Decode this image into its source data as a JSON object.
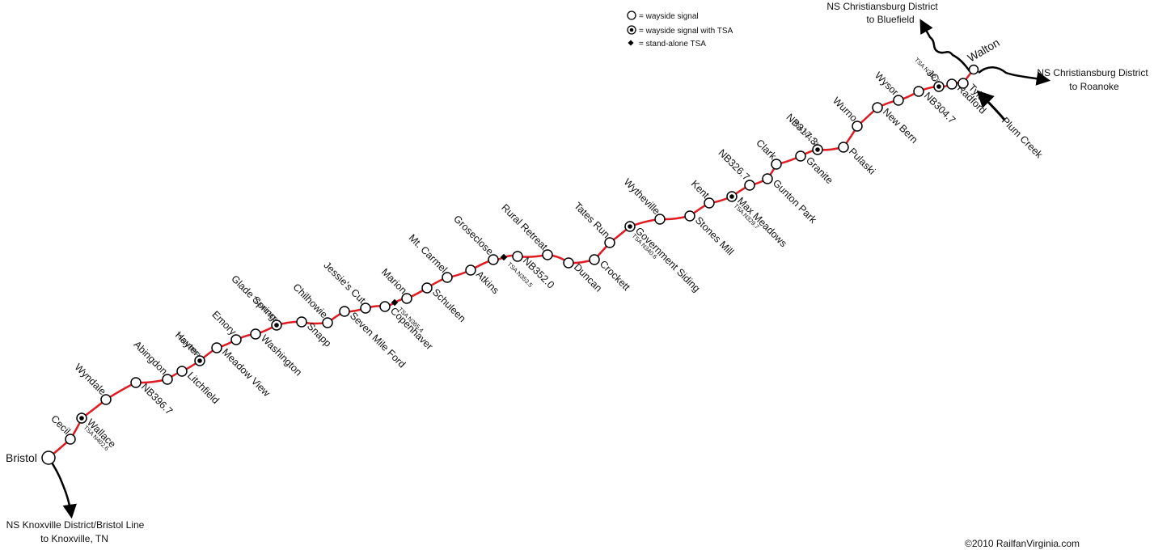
{
  "colors": {
    "main_line": "#e11b22",
    "branch_line": "#000000",
    "signal_fill": "#ffffff",
    "signal_stroke": "#000000"
  },
  "legend": {
    "wayside": "= wayside signal",
    "wayside_tsa": "= wayside signal with TSA",
    "standalone": "= stand-alone TSA"
  },
  "annotations": {
    "bluefield_1": "NS Christiansburg District",
    "bluefield_2": "to Bluefield",
    "roanoke_1": "NS Christiansburg District",
    "roanoke_2": "to Roanoke",
    "knoxville_1": "NS Knoxville District/Bristol Line",
    "knoxville_2": "to Knoxville, TN",
    "plum_creek": "Plum Creek",
    "walton": "Walton"
  },
  "copyright": "©2010 RailfanVirginia.com",
  "stations": [
    {
      "name": "Bristol"
    },
    {
      "name": "Cecil"
    },
    {
      "name": "Wallace",
      "tsa": "TSA N402.6"
    },
    {
      "name": "Wyndale"
    },
    {
      "name": "NB396.7"
    },
    {
      "name": "Abingdon"
    },
    {
      "name": "Litchfield"
    },
    {
      "name": "Hayter",
      "tsa": "TSA N390.4"
    },
    {
      "name": "Meadow View"
    },
    {
      "name": "Emory"
    },
    {
      "name": "Washington"
    },
    {
      "name": "Glade Spring",
      "tsa": "TSA N378.8"
    },
    {
      "name": "Snapp"
    },
    {
      "name": "Chilhowie"
    },
    {
      "name": "Seven Mile Ford"
    },
    {
      "name": "Jessie's Cut"
    },
    {
      "name": "Copenhaver"
    },
    {
      "name": "TSA N365.4"
    },
    {
      "name": "Marion"
    },
    {
      "name": "Schuleen"
    },
    {
      "name": "Mt. Carmel"
    },
    {
      "name": "Atkins"
    },
    {
      "name": "Groseclose"
    },
    {
      "name": "TSA N353.5"
    },
    {
      "name": "NB352.0"
    },
    {
      "name": "Rural Retreat"
    },
    {
      "name": "Duncan"
    },
    {
      "name": "Crockett"
    },
    {
      "name": "Tates Run"
    },
    {
      "name": "Government Siding",
      "tsa": "TSA N340.6"
    },
    {
      "name": "Wytheville"
    },
    {
      "name": "Stones Mill"
    },
    {
      "name": "Kent"
    },
    {
      "name": "Max Meadows",
      "tsa": "TSA N329.7"
    },
    {
      "name": "NB326.7"
    },
    {
      "name": "Gunton Park"
    },
    {
      "name": "Clark"
    },
    {
      "name": "Granite"
    },
    {
      "name": "NB317.3",
      "tsa": "TSA N317.2"
    },
    {
      "name": "Pulaski"
    },
    {
      "name": "Wurno"
    },
    {
      "name": "New Bern"
    },
    {
      "name": "Wysor"
    },
    {
      "name": "NB304.7"
    },
    {
      "name": "JC",
      "tsa": "TSA N302.6"
    },
    {
      "name": "Radford"
    },
    {
      "name": "Tyler"
    }
  ]
}
